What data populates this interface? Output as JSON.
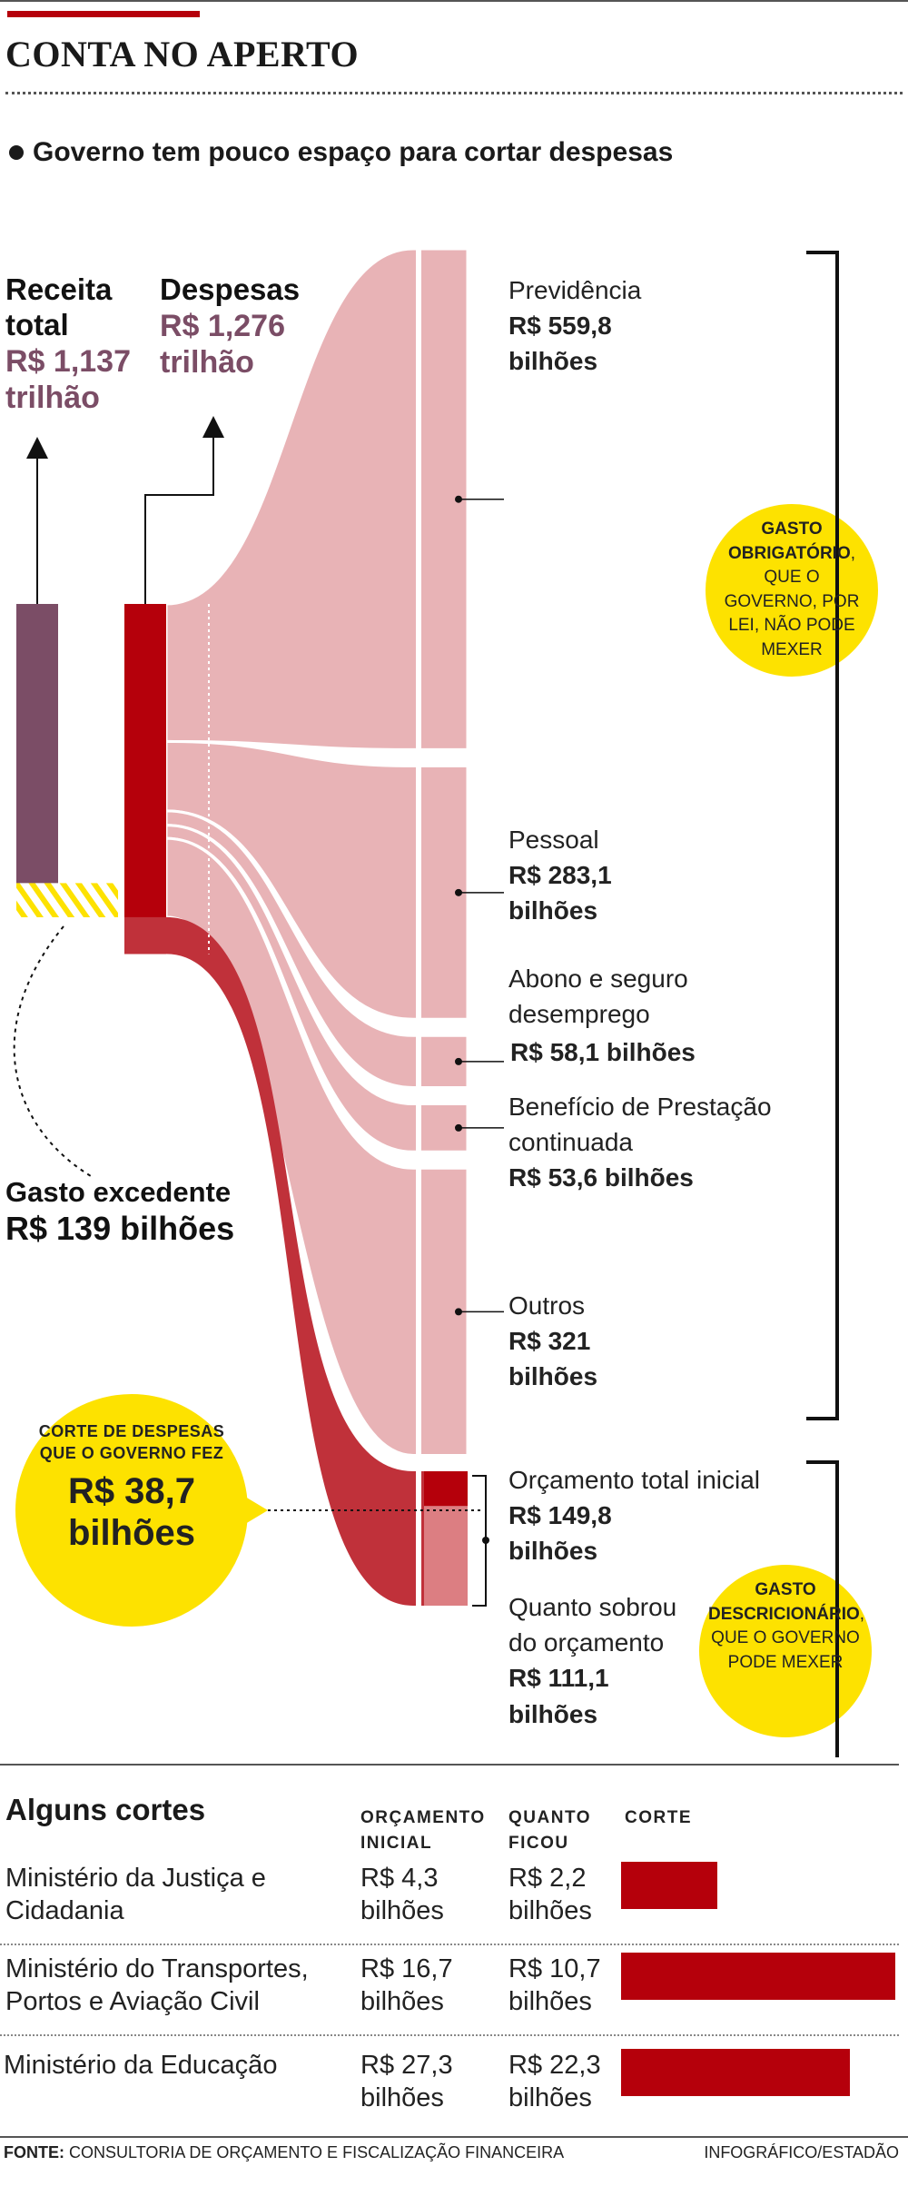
{
  "header": {
    "title": "CONTA NO APERTO",
    "subtitle": "Governo tem pouco espaço para cortar despesas"
  },
  "colors": {
    "accent_red": "#b5000b",
    "receita_purple": "#7b4d66",
    "flow_pink": "#e8b3b6",
    "flow_red": "#c0313a",
    "highlight_yellow": "#fde200"
  },
  "chart_data": {
    "type": "sankey",
    "title": "CONTA NO APERTO",
    "subtitle": "Governo tem pouco espaço para cortar despesas",
    "unit": "R$ bilhões",
    "receita": {
      "label": "Receita total",
      "value_text": "R$ 1,137 trilhão",
      "value": 1137
    },
    "despesas": {
      "label": "Despesas",
      "value_text": "R$ 1,276 trilhão",
      "value": 1276
    },
    "gasto_excedente": {
      "label": "Gasto excedente",
      "value_text": "R$ 139 bilhões",
      "value": 139
    },
    "gasto_obrigatorio": {
      "bold": "GASTO OBRIGATÓRIO",
      "text": ", QUE O GOVERNO, POR LEI, NÃO PODE MEXER",
      "items": [
        {
          "name": "Previdência",
          "value_text": "R$ 559,8 bilhões",
          "value": 559.8
        },
        {
          "name": "Pessoal",
          "value_text": "R$ 283,1 bilhões",
          "value": 283.1
        },
        {
          "name": "Abono e seguro desemprego",
          "value_text": "R$ 58,1 bilhões",
          "value": 58.1
        },
        {
          "name": "Benefício de Prestação continuada",
          "value_text": "R$ 53,6 bilhões",
          "value": 53.6
        },
        {
          "name": "Outros",
          "value_text": "R$ 321 bilhões",
          "value": 321
        }
      ]
    },
    "gasto_discricionario": {
      "bold": "GASTO DESCRICIONÁRIO",
      "text": ", QUE O GOVERNO PODE MEXER",
      "orcamento_inicial": {
        "name": "Orçamento total inicial",
        "value_text": "R$ 149,8 bilhões",
        "value": 149.8
      },
      "sobrou": {
        "name": "Quanto sobrou do orçamento",
        "value_text": "R$ 111,1 bilhões",
        "value": 111.1
      }
    },
    "corte": {
      "label": "CORTE DE DESPESAS QUE O GOVERNO FEZ",
      "value_text": "R$ 38,7 bilhões",
      "value": 38.7
    }
  },
  "table": {
    "title": "Alguns cortes",
    "headers": [
      "ORÇAMENTO INICIAL",
      "QUANTO FICOU",
      "CORTE"
    ],
    "rows": [
      {
        "name": "Ministério da Justiça e Cidadania",
        "inicial_text": "R$ 4,3 bilhões",
        "ficou_text": "R$ 2,2 bilhões",
        "inicial": 4.3,
        "ficou": 2.2
      },
      {
        "name": "Ministério do Transportes, Portos e Aviação Civil",
        "inicial_text": "R$ 16,7 bilhões",
        "ficou_text": "R$ 10,7 bilhões",
        "inicial": 16.7,
        "ficou": 10.7
      },
      {
        "name": "Ministério da Educação",
        "inicial_text": "R$ 27,3 bilhões",
        "ficou_text": "R$ 22,3 bilhões",
        "inicial": 27.3,
        "ficou": 22.3
      }
    ]
  },
  "footer": {
    "source_label": "FONTE:",
    "source": "CONSULTORIA DE ORÇAMENTO E FISCALIZAÇÃO FINANCEIRA",
    "credit": "INFOGRÁFICO/ESTADÃO"
  }
}
